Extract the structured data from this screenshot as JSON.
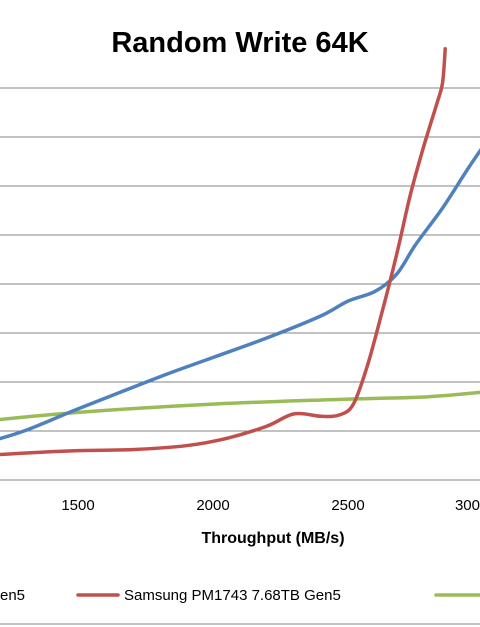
{
  "chart_data": {
    "type": "line",
    "title": "Random Write 64K",
    "xlabel": "Throughput  (MB/s)",
    "ylabel": "",
    "x_ticks": [
      "1500",
      "2000",
      "2500",
      "300"
    ],
    "xlim": [
      1150,
      3050
    ],
    "ylim": [
      0,
      8
    ],
    "grid": true,
    "legend_position": "bottom",
    "series": [
      {
        "name": "Samsung PM1743 7.68TB Gen5",
        "color": "#c0504d",
        "points": [
          [
            1150,
            0.5
          ],
          [
            1300,
            0.55
          ],
          [
            1500,
            0.6
          ],
          [
            1700,
            0.62
          ],
          [
            1900,
            0.7
          ],
          [
            2050,
            0.85
          ],
          [
            2200,
            1.1
          ],
          [
            2300,
            1.35
          ],
          [
            2400,
            1.3
          ],
          [
            2470,
            1.33
          ],
          [
            2520,
            1.55
          ],
          [
            2570,
            2.3
          ],
          [
            2620,
            3.3
          ],
          [
            2680,
            4.6
          ],
          [
            2730,
            5.8
          ],
          [
            2780,
            6.8
          ],
          [
            2830,
            7.7
          ],
          [
            2850,
            8.1
          ],
          [
            2860,
            8.8
          ]
        ]
      },
      {
        "name": "en5",
        "color": "#4f81bd",
        "points": [
          [
            1150,
            0.75
          ],
          [
            1300,
            1.0
          ],
          [
            1500,
            1.45
          ],
          [
            1800,
            2.1
          ],
          [
            2000,
            2.5
          ],
          [
            2200,
            2.9
          ],
          [
            2400,
            3.35
          ],
          [
            2500,
            3.65
          ],
          [
            2600,
            3.85
          ],
          [
            2680,
            4.2
          ],
          [
            2750,
            4.8
          ],
          [
            2850,
            5.55
          ],
          [
            2950,
            6.4
          ],
          [
            3050,
            7.2
          ]
        ]
      },
      {
        "name": "",
        "color": "#9bbb59",
        "points": [
          [
            1150,
            1.2
          ],
          [
            1500,
            1.38
          ],
          [
            2000,
            1.55
          ],
          [
            2500,
            1.65
          ],
          [
            2800,
            1.7
          ],
          [
            3050,
            1.82
          ]
        ]
      }
    ]
  }
}
